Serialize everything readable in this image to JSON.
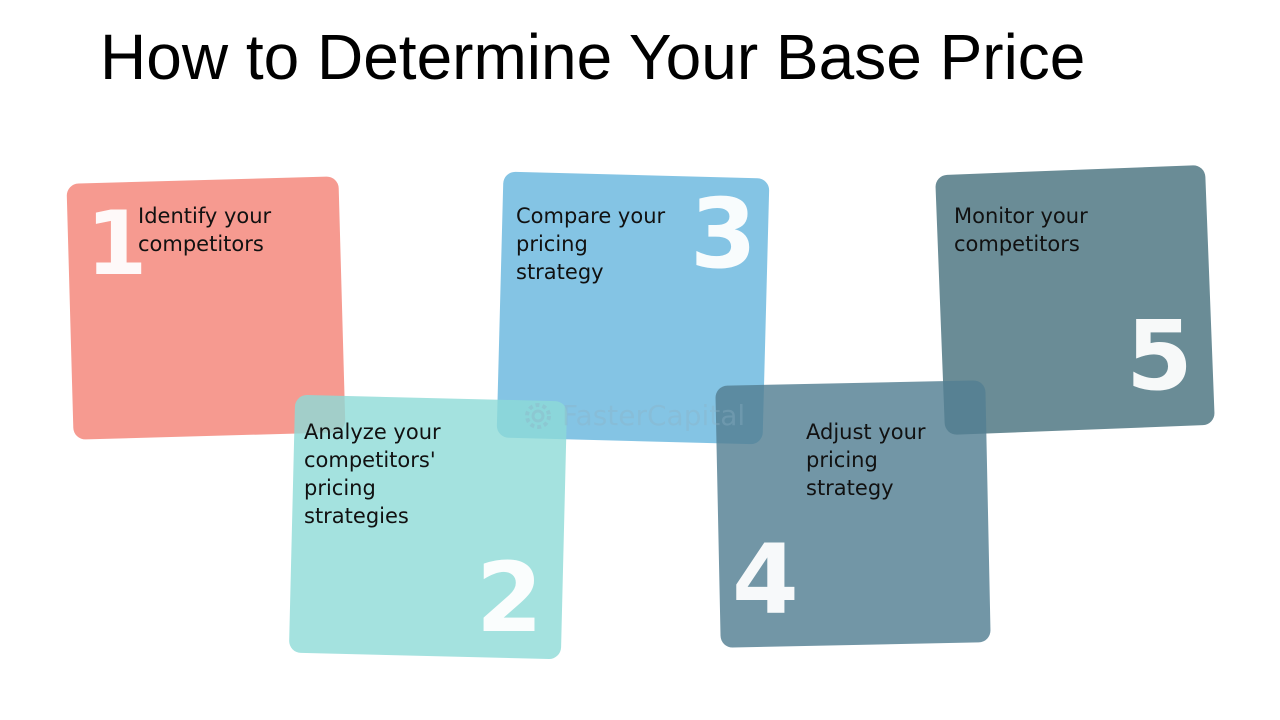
{
  "title": "How to Determine Your Base Price",
  "steps": [
    {
      "number": "1",
      "label": "Identify your\ncompetitors",
      "color": "#f4887d"
    },
    {
      "number": "2",
      "label": "Analyze your\ncompetitors'\npricing\nstrategies",
      "color": "#8ddbd7"
    },
    {
      "number": "3",
      "label": "Compare your\npricing\nstrategy",
      "color": "#69b7de"
    },
    {
      "number": "4",
      "label": "Adjust your\npricing\nstrategy",
      "color": "#537f92"
    },
    {
      "number": "5",
      "label": "Monitor your\ncompetitors",
      "color": "#4e7682"
    }
  ],
  "watermark": {
    "text": "FasterCapital",
    "icon": "gear-logo-icon"
  }
}
